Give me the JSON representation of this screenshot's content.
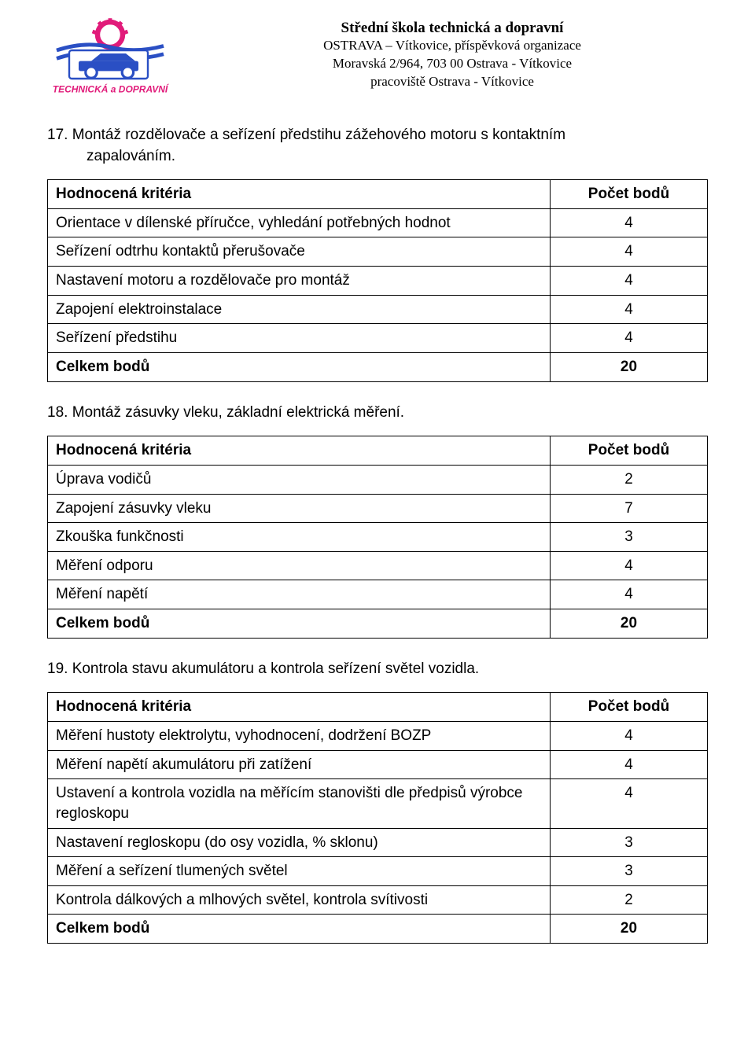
{
  "header": {
    "title": "Střední škola technická a dopravní",
    "line2": "OSTRAVA – Vítkovice, příspěvková organizace",
    "line3": "Moravská 2/964, 703 00 Ostrava - Vítkovice",
    "line4": "pracoviště Ostrava - Vítkovice",
    "logo_tag": "TECHNICKÁ a DOPRAVNÍ",
    "colors": {
      "gear": "#e11b7a",
      "car": "#2a4fc4",
      "box_bg": "#ffffff",
      "box_border": "#2a4fc4",
      "tag_text": "#e11b7a"
    }
  },
  "labels": {
    "criteria_header": "Hodnocená kritéria",
    "points_header": "Počet bodů",
    "total_label": "Celkem bodů"
  },
  "sections": [
    {
      "number": "17.",
      "title_line1": "17. Montáž rozdělovače a seřízení předstihu zážehového motoru s kontaktním",
      "title_line2": "zapalováním.",
      "rows": [
        {
          "label": "Orientace v dílenské příručce, vyhledání potřebných hodnot",
          "points": "4"
        },
        {
          "label": "Seřízení odtrhu  kontaktů přerušovače",
          "points": "4"
        },
        {
          "label": "Nastavení motoru a rozdělovače pro montáž",
          "points": "4"
        },
        {
          "label": "Zapojení elektroinstalace",
          "points": "4"
        },
        {
          "label": "Seřízení předstihu",
          "points": "4"
        }
      ],
      "total": "20"
    },
    {
      "number": "18.",
      "title_line1": "18. Montáž zásuvky vleku, základní elektrická měření.",
      "title_line2": "",
      "rows": [
        {
          "label": "Úprava vodičů",
          "points": "2"
        },
        {
          "label": "Zapojení zásuvky vleku",
          "points": "7"
        },
        {
          "label": "Zkouška funkčnosti",
          "points": "3"
        },
        {
          "label": "Měření odporu",
          "points": "4"
        },
        {
          "label": "Měření napětí",
          "points": "4"
        }
      ],
      "total": "20"
    },
    {
      "number": "19.",
      "title_line1": "19. Kontrola stavu akumulátoru a kontrola seřízení světel vozidla.",
      "title_line2": "",
      "rows": [
        {
          "label": "Měření hustoty elektrolytu, vyhodnocení, dodržení BOZP",
          "points": "4"
        },
        {
          "label": "Měření napětí akumulátoru při zatížení",
          "points": "4"
        },
        {
          "label": "Ustavení a kontrola vozidla na měřícím stanovišti dle předpisů výrobce regloskopu",
          "points": "4"
        },
        {
          "label": "Nastavení regloskopu (do osy vozidla, % sklonu)",
          "points": "3"
        },
        {
          "label": "Měření a seřízení tlumených světel",
          "points": "3"
        },
        {
          "label": "Kontrola dálkových a mlhových světel, kontrola svítivosti",
          "points": "2"
        }
      ],
      "total": "20"
    }
  ]
}
